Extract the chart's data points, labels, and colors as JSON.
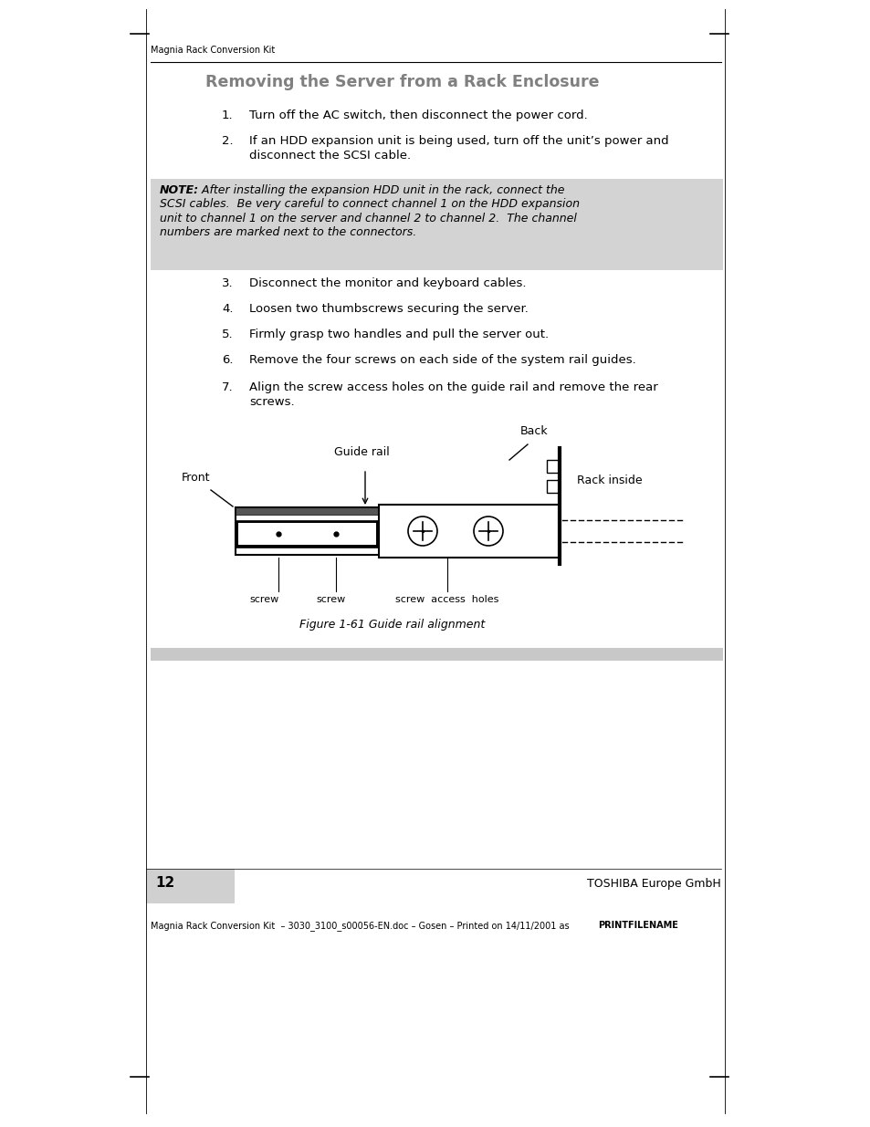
{
  "page_bg": "#ffffff",
  "header_text": "Magnia Rack Conversion Kit",
  "title": "Removing the Server from a Rack Enclosure",
  "title_color": "#808080",
  "title_fontsize": 12.5,
  "steps": [
    {
      "num": "1.",
      "text": "Turn off the AC switch, then disconnect the power cord."
    },
    {
      "num": "2.",
      "text": "If an HDD expansion unit is being used, turn off the unit’s power and\ndisconnect the SCSI cable."
    }
  ],
  "note_bg": "#d3d3d3",
  "steps2": [
    {
      "num": "3.",
      "text": "Disconnect the monitor and keyboard cables."
    },
    {
      "num": "4.",
      "text": "Loosen two thumbscrews securing the server."
    },
    {
      "num": "5.",
      "text": "Firmly grasp two handles and pull the server out."
    },
    {
      "num": "6.",
      "text": "Remove the four screws on each side of the system rail guides."
    },
    {
      "num": "7.",
      "text": "Align the screw access holes on the guide rail and remove the rear\nscrews."
    }
  ],
  "figure_caption": "Figure 1-61 Guide rail alignment",
  "footer_bar_color": "#c8c8c8",
  "footer_page": "12",
  "footer_company": "TOSHIBA Europe GmbH",
  "footer_doc_normal": "Magnia Rack Conversion Kit  – 3030_3100_s00056-EN.doc – Gosen – Printed on 14/11/2001 as ",
  "footer_doc_bold": "PRINTFILENAME"
}
